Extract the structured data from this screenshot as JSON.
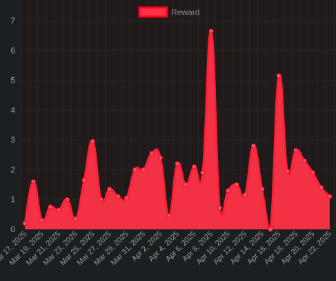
{
  "chart_data": {
    "type": "area",
    "legend": {
      "position": "top",
      "entries": [
        {
          "name": "Reward",
          "color": "#ff3347"
        }
      ]
    },
    "x": [
      "Mar 17, 2025",
      "Mar 18, 2025",
      "Mar 19, 2025",
      "Mar 20, 2025",
      "Mar 21, 2025",
      "Mar 22, 2025",
      "Mar 23, 2025",
      "Mar 24, 2025",
      "Mar 25, 2025",
      "Mar 26, 2025",
      "Mar 27, 2025",
      "Mar 28, 2025",
      "Mar 29, 2025",
      "Mar 30, 2025",
      "Mar 31, 2025",
      "Apr 1, 2025",
      "Apr 2, 2025",
      "Apr 3, 2025",
      "Apr 4, 2025",
      "Apr 5, 2025",
      "Apr 6, 2025",
      "Apr 7, 2025",
      "Apr 8, 2025",
      "Apr 9, 2025",
      "Apr 10, 2025",
      "Apr 11, 2025",
      "Apr 12, 2025",
      "Apr 13, 2025",
      "Apr 14, 2025",
      "Apr 15, 2025",
      "Apr 16, 2025",
      "Apr 17, 2025",
      "Apr 18, 2025",
      "Apr 19, 2025",
      "Apr 20, 2025",
      "Apr 21, 2025",
      "Apr 22, 2025"
    ],
    "xticklabels_shown": [
      "Mar 17, 2025",
      "Mar 19, 2025",
      "Mar 21, 2025",
      "Mar 23, 2025",
      "Mar 25, 2025",
      "Mar 27, 2025",
      "Mar 29, 2025",
      "Mar 31, 2025",
      "Apr 2, 2025",
      "Apr 4, 2025",
      "Apr 6, 2025",
      "Apr 8, 2025",
      "Apr 10, 2025",
      "Apr 12, 2025",
      "Apr 14, 2025",
      "Apr 16, 2025",
      "Apr 18, 2025",
      "Apr 20, 2025",
      "Apr 22, 2025"
    ],
    "series": [
      {
        "name": "Reward",
        "color": "#ff3347",
        "samples_per_day": 2,
        "values": [
          0.2,
          1.6,
          0.3,
          0.75,
          0.65,
          1.0,
          0.35,
          1.65,
          2.95,
          1.0,
          1.35,
          1.1,
          1.05,
          2.0,
          2.0,
          2.55,
          2.4,
          0.45,
          2.2,
          1.5,
          2.1,
          1.9,
          6.65,
          0.72,
          1.3,
          1.5,
          1.15,
          2.8,
          1.35,
          0.0,
          5.15,
          1.95,
          2.65,
          2.3,
          1.9,
          1.4,
          1.1
        ]
      }
    ],
    "yticks": [
      0,
      1,
      2,
      3,
      4,
      5,
      6,
      7
    ],
    "ylim": [
      0,
      7
    ],
    "grid": true
  }
}
